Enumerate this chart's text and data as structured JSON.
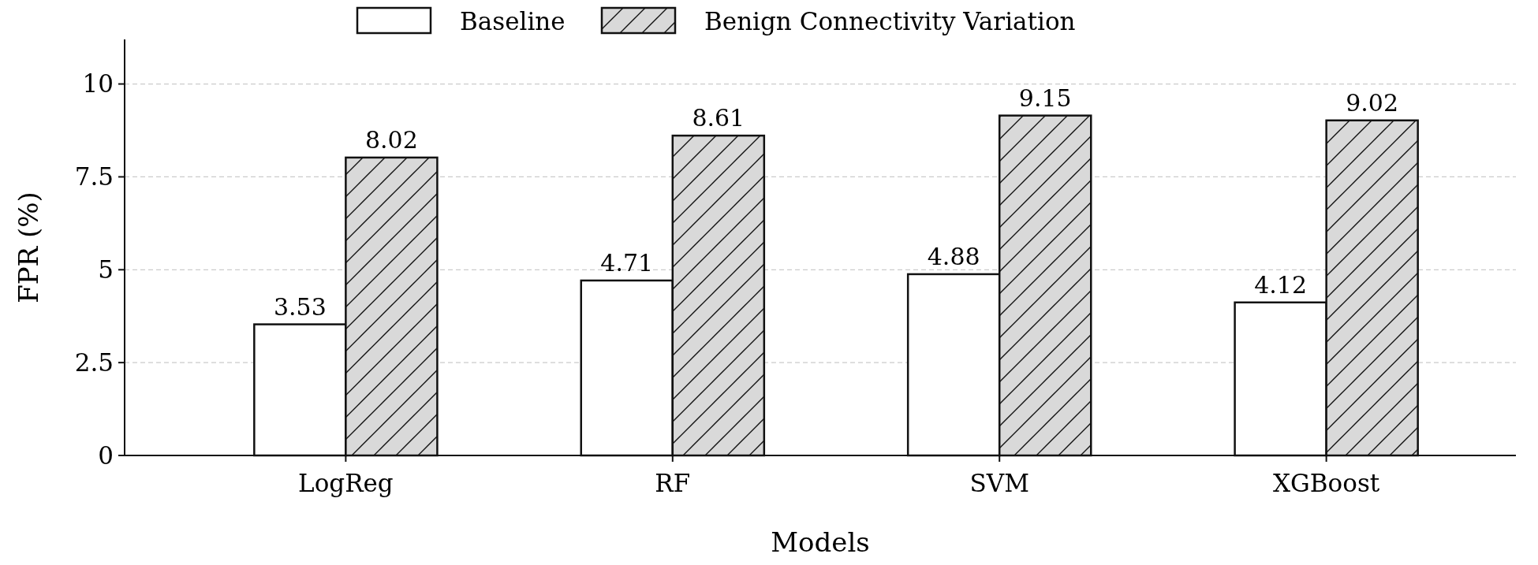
{
  "chart_data": {
    "type": "bar",
    "xlabel": "Models",
    "ylabel": "FPR (%)",
    "categories": [
      "LogReg",
      "RF",
      "SVM",
      "XGBoost"
    ],
    "series": [
      {
        "name": "Baseline",
        "color": "#ffffff",
        "values": [
          3.53,
          4.71,
          4.88,
          4.12
        ]
      },
      {
        "name": "Benign Connectivity Variation",
        "color": "#d9d9d9",
        "values": [
          8.02,
          8.61,
          9.15,
          9.02
        ]
      }
    ],
    "ylim": [
      0,
      11.2
    ],
    "yticks": [
      0,
      2.5,
      5,
      7.5,
      10
    ],
    "grid": "y",
    "legend": "top",
    "data_labels": true
  }
}
